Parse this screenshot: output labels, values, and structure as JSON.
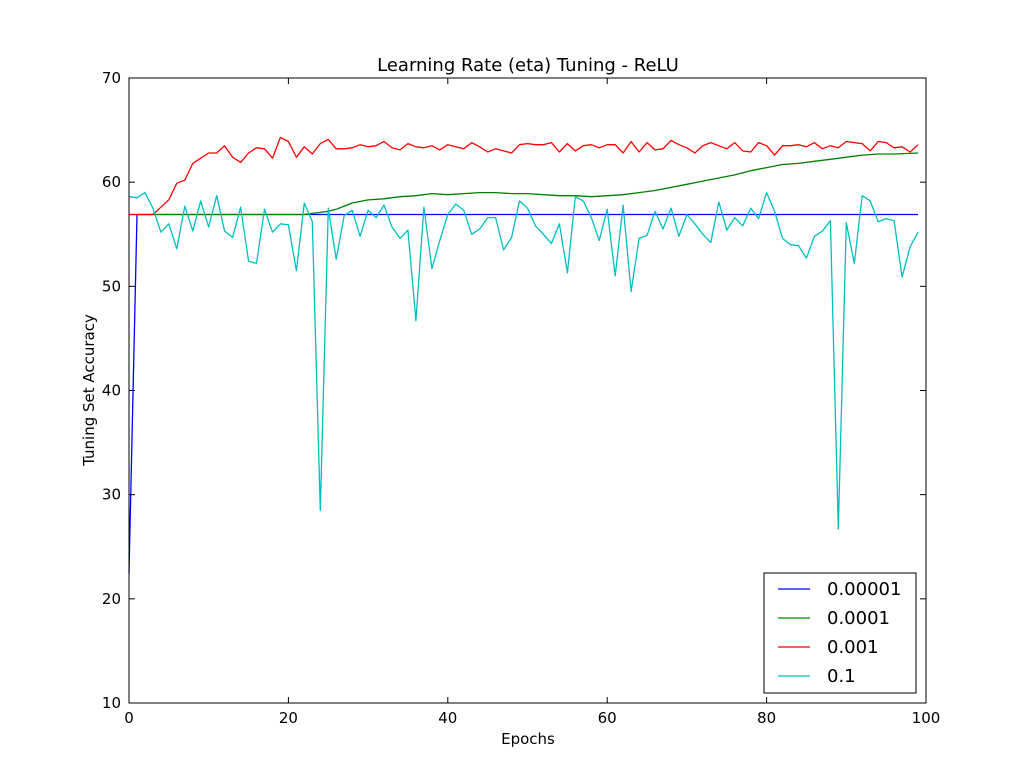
{
  "chart_data": {
    "type": "line",
    "title": "Learning Rate (eta) Tuning - ReLU",
    "xlabel": "Epochs",
    "ylabel": "Tuning Set Accuracy",
    "xlim": [
      0,
      100
    ],
    "ylim": [
      10,
      70
    ],
    "xticks": [
      "0",
      "20",
      "40",
      "60",
      "80",
      "100"
    ],
    "yticks": [
      "10",
      "20",
      "30",
      "40",
      "50",
      "60",
      "70"
    ],
    "grid": false,
    "legend_position": "lower-right",
    "series": [
      {
        "name": "0.00001",
        "color": "#0000ff",
        "x": [
          0,
          1,
          2,
          10,
          20,
          30,
          40,
          50,
          60,
          70,
          80,
          90,
          99
        ],
        "values": [
          22.5,
          56.9,
          56.9,
          56.9,
          56.9,
          56.9,
          56.9,
          56.9,
          56.9,
          56.9,
          56.9,
          56.9,
          56.9
        ]
      },
      {
        "name": "0.0001",
        "color": "#008000",
        "x": [
          0,
          10,
          20,
          22,
          23,
          24,
          25,
          26,
          27,
          28,
          30,
          32,
          34,
          36,
          38,
          40,
          42,
          44,
          46,
          48,
          50,
          52,
          54,
          56,
          58,
          60,
          62,
          64,
          66,
          68,
          70,
          72,
          74,
          76,
          78,
          80,
          82,
          84,
          86,
          88,
          90,
          92,
          94,
          96,
          99
        ],
        "values": [
          56.9,
          56.9,
          56.9,
          56.9,
          57.0,
          57.1,
          57.2,
          57.4,
          57.7,
          58.0,
          58.3,
          58.4,
          58.6,
          58.7,
          58.9,
          58.8,
          58.9,
          59.0,
          59.0,
          58.9,
          58.9,
          58.8,
          58.7,
          58.7,
          58.6,
          58.7,
          58.8,
          59.0,
          59.2,
          59.5,
          59.8,
          60.1,
          60.4,
          60.7,
          61.1,
          61.4,
          61.7,
          61.8,
          62.0,
          62.2,
          62.4,
          62.6,
          62.7,
          62.7,
          62.8
        ]
      },
      {
        "name": "0.001",
        "color": "#ff0000",
        "x": [
          0,
          1,
          2,
          3,
          4,
          5,
          6,
          7,
          8,
          9,
          10,
          11,
          12,
          13,
          14,
          15,
          16,
          17,
          18,
          19,
          20,
          21,
          22,
          23,
          24,
          25,
          26,
          27,
          28,
          29,
          30,
          31,
          32,
          33,
          34,
          35,
          36,
          37,
          38,
          39,
          40,
          41,
          42,
          43,
          44,
          45,
          46,
          47,
          48,
          49,
          50,
          51,
          52,
          53,
          54,
          55,
          56,
          57,
          58,
          59,
          60,
          61,
          62,
          63,
          64,
          65,
          66,
          67,
          68,
          69,
          70,
          71,
          72,
          73,
          74,
          75,
          76,
          77,
          78,
          79,
          80,
          81,
          82,
          83,
          84,
          85,
          86,
          87,
          88,
          89,
          90,
          91,
          92,
          93,
          94,
          95,
          96,
          97,
          98,
          99
        ],
        "values": [
          56.9,
          56.9,
          56.9,
          56.9,
          57.6,
          58.3,
          59.9,
          60.2,
          61.8,
          62.3,
          62.8,
          62.8,
          63.5,
          62.4,
          61.9,
          62.8,
          63.3,
          63.2,
          62.3,
          64.3,
          63.9,
          62.4,
          63.4,
          62.7,
          63.7,
          64.1,
          63.2,
          63.2,
          63.3,
          63.6,
          63.4,
          63.5,
          63.9,
          63.3,
          63.1,
          63.7,
          63.4,
          63.3,
          63.5,
          63.1,
          63.6,
          63.4,
          63.2,
          63.8,
          63.4,
          62.9,
          63.2,
          63.0,
          62.8,
          63.6,
          63.7,
          63.6,
          63.6,
          63.8,
          62.9,
          63.7,
          63.0,
          63.5,
          63.6,
          63.3,
          63.6,
          63.6,
          62.8,
          63.9,
          62.9,
          63.8,
          63.1,
          63.2,
          64.0,
          63.6,
          63.3,
          62.8,
          63.5,
          63.8,
          63.5,
          63.2,
          63.8,
          63.0,
          62.9,
          63.8,
          63.5,
          62.6,
          63.5,
          63.5,
          63.6,
          63.4,
          63.8,
          63.2,
          63.5,
          63.3,
          63.9,
          63.8,
          63.7,
          63.0,
          63.9,
          63.8,
          63.3,
          63.4,
          62.9,
          63.6
        ]
      },
      {
        "name": "0.1",
        "color": "#00bfbf",
        "x": [
          0,
          1,
          2,
          3,
          4,
          5,
          6,
          7,
          8,
          9,
          10,
          11,
          12,
          13,
          14,
          15,
          16,
          17,
          18,
          19,
          20,
          21,
          22,
          23,
          24,
          25,
          26,
          27,
          28,
          29,
          30,
          31,
          32,
          33,
          34,
          35,
          36,
          37,
          38,
          39,
          40,
          41,
          42,
          43,
          44,
          45,
          46,
          47,
          48,
          49,
          50,
          51,
          52,
          53,
          54,
          55,
          56,
          57,
          58,
          59,
          60,
          61,
          62,
          63,
          64,
          65,
          66,
          67,
          68,
          69,
          70,
          71,
          72,
          73,
          74,
          75,
          76,
          77,
          78,
          79,
          80,
          81,
          82,
          83,
          84,
          85,
          86,
          87,
          88,
          89,
          90,
          91,
          92,
          93,
          94,
          95,
          96,
          97,
          98,
          99
        ],
        "values": [
          58.6,
          58.5,
          59.0,
          57.5,
          55.2,
          56.0,
          53.6,
          57.7,
          55.3,
          58.2,
          55.7,
          58.7,
          55.3,
          54.7,
          57.6,
          52.4,
          52.2,
          57.4,
          55.2,
          56.0,
          55.9,
          51.5,
          58.0,
          56.2,
          28.5,
          57.5,
          52.6,
          56.8,
          57.3,
          54.8,
          57.3,
          56.6,
          57.8,
          55.7,
          54.6,
          55.4,
          46.7,
          57.6,
          51.7,
          54.4,
          56.9,
          57.9,
          57.3,
          55.0,
          55.5,
          56.6,
          56.6,
          53.5,
          54.7,
          58.2,
          57.5,
          55.8,
          55.0,
          54.1,
          56.0,
          51.3,
          58.6,
          58.2,
          56.6,
          54.4,
          57.4,
          51.0,
          57.8,
          49.5,
          54.6,
          54.9,
          57.2,
          55.5,
          57.5,
          54.8,
          56.9,
          56.0,
          55.0,
          54.2,
          58.1,
          55.4,
          56.6,
          55.8,
          57.5,
          56.5,
          59.0,
          57.2,
          54.6,
          54.0,
          53.9,
          52.7,
          54.8,
          55.3,
          56.3,
          26.7,
          56.1,
          52.2,
          58.7,
          58.2,
          56.2,
          56.5,
          56.3,
          50.9,
          53.8,
          55.2
        ]
      }
    ]
  }
}
